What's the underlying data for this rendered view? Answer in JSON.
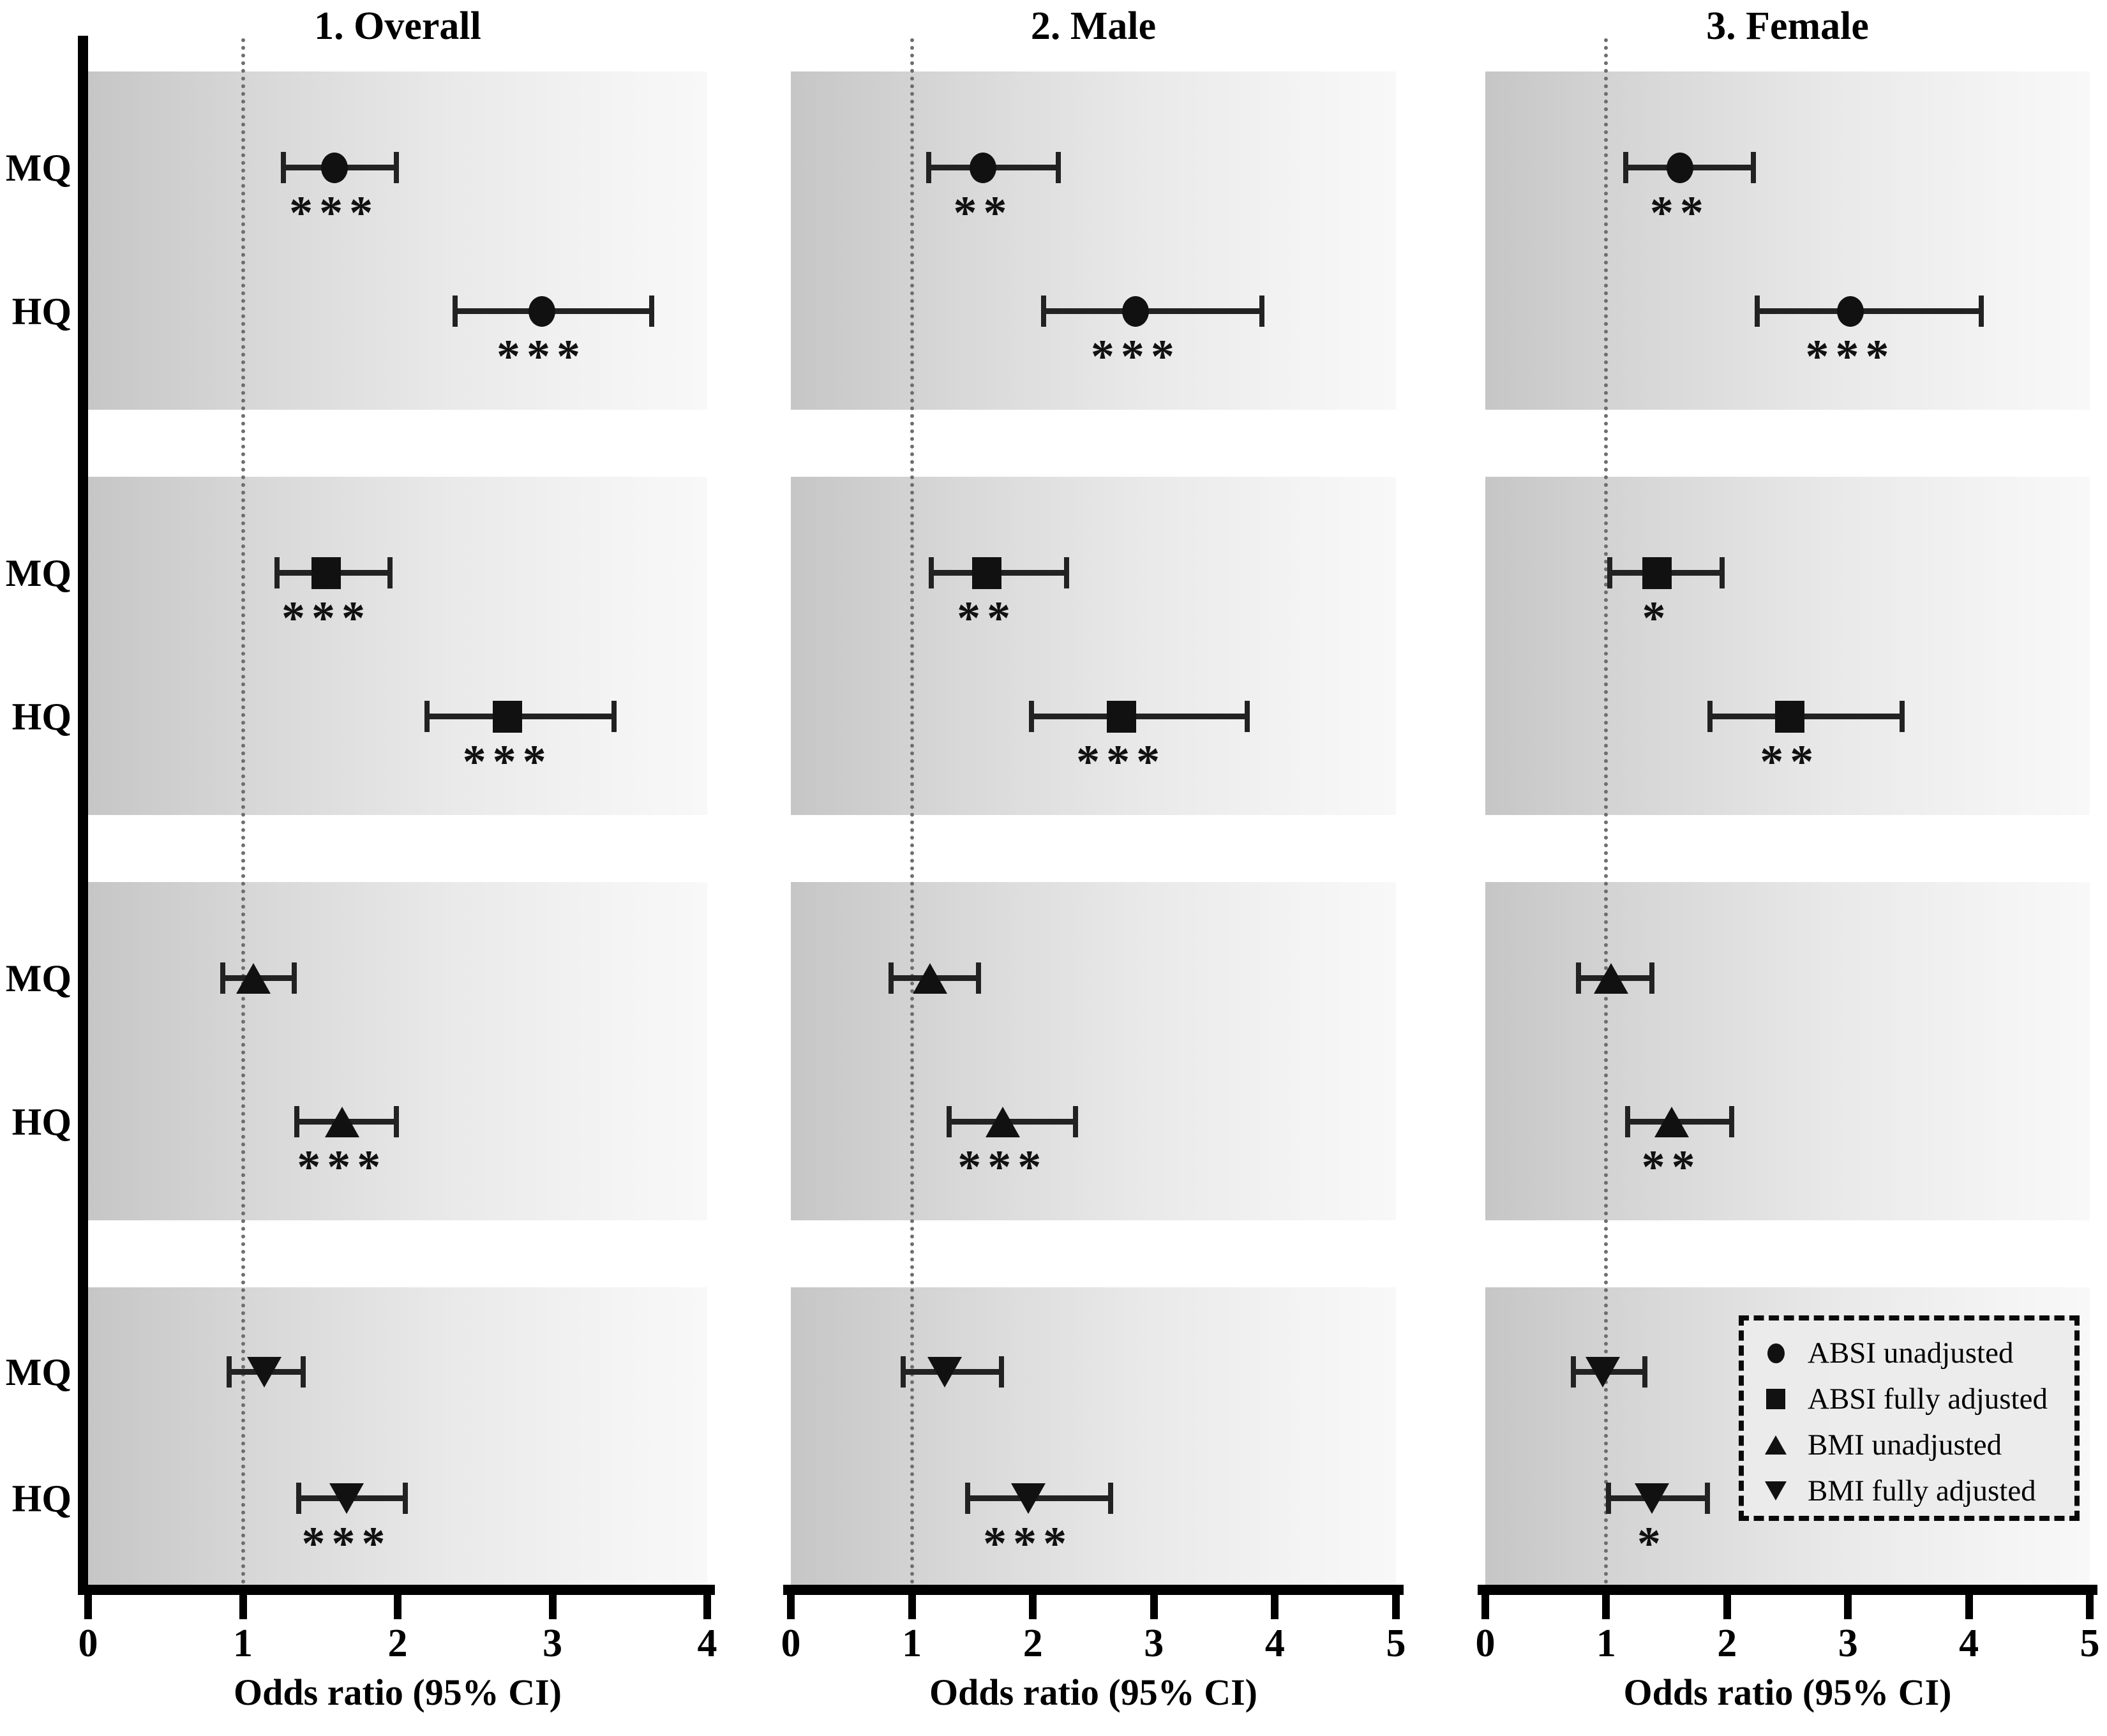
{
  "colors": {
    "marker": "#111111",
    "axis": "#000000",
    "band_left": "#c6c6c6",
    "band_right": "#f8f8f8",
    "reference_line": "#6e6e6e"
  },
  "chart_data": {
    "type": "forest",
    "xlabel": "Odds ratio (95% CI)",
    "row_labels": [
      "MQ",
      "HQ"
    ],
    "reference_line": 1,
    "grid": false,
    "legend_position": "bottom-right",
    "panels": [
      {
        "title": "1. Overall",
        "xlim": [
          0,
          4
        ],
        "xticks": [
          0,
          1,
          2,
          3,
          4
        ],
        "groups": [
          {
            "series": "ABSI unadjusted",
            "marker": "circle",
            "rows": [
              {
                "label": "MQ",
                "or": 1.59,
                "lo": 1.26,
                "hi": 1.99,
                "sig": "***"
              },
              {
                "label": "HQ",
                "or": 2.93,
                "lo": 2.37,
                "hi": 3.64,
                "sig": "***"
              }
            ]
          },
          {
            "series": "ABSI fully adjusted",
            "marker": "square",
            "rows": [
              {
                "label": "MQ",
                "or": 1.54,
                "lo": 1.22,
                "hi": 1.95,
                "sig": "***"
              },
              {
                "label": "HQ",
                "or": 2.71,
                "lo": 2.19,
                "hi": 3.4,
                "sig": "***"
              }
            ]
          },
          {
            "series": "BMI unadjusted",
            "marker": "tri-up",
            "rows": [
              {
                "label": "MQ",
                "or": 1.07,
                "lo": 0.87,
                "hi": 1.33,
                "sig": ""
              },
              {
                "label": "HQ",
                "or": 1.64,
                "lo": 1.35,
                "hi": 1.99,
                "sig": "***"
              }
            ]
          },
          {
            "series": "BMI fully adjusted",
            "marker": "tri-down",
            "rows": [
              {
                "label": "MQ",
                "or": 1.14,
                "lo": 0.91,
                "hi": 1.39,
                "sig": ""
              },
              {
                "label": "HQ",
                "or": 1.67,
                "lo": 1.36,
                "hi": 2.05,
                "sig": "***"
              }
            ]
          }
        ]
      },
      {
        "title": "2. Male",
        "xlim": [
          0,
          5
        ],
        "xticks": [
          0,
          1,
          2,
          3,
          4,
          5
        ],
        "groups": [
          {
            "series": "ABSI unadjusted",
            "marker": "circle",
            "rows": [
              {
                "label": "MQ",
                "or": 1.59,
                "lo": 1.14,
                "hi": 2.21,
                "sig": "**"
              },
              {
                "label": "HQ",
                "or": 2.85,
                "lo": 2.09,
                "hi": 3.89,
                "sig": "***"
              }
            ]
          },
          {
            "series": "ABSI fully adjusted",
            "marker": "square",
            "rows": [
              {
                "label": "MQ",
                "or": 1.62,
                "lo": 1.16,
                "hi": 2.28,
                "sig": "**"
              },
              {
                "label": "HQ",
                "or": 2.73,
                "lo": 1.99,
                "hi": 3.77,
                "sig": "***"
              }
            ]
          },
          {
            "series": "BMI unadjusted",
            "marker": "tri-up",
            "rows": [
              {
                "label": "MQ",
                "or": 1.15,
                "lo": 0.83,
                "hi": 1.55,
                "sig": ""
              },
              {
                "label": "HQ",
                "or": 1.75,
                "lo": 1.31,
                "hi": 2.35,
                "sig": "***"
              }
            ]
          },
          {
            "series": "BMI fully adjusted",
            "marker": "tri-down",
            "rows": [
              {
                "label": "MQ",
                "or": 1.27,
                "lo": 0.93,
                "hi": 1.74,
                "sig": ""
              },
              {
                "label": "HQ",
                "or": 1.96,
                "lo": 1.46,
                "hi": 2.64,
                "sig": "***"
              }
            ]
          }
        ]
      },
      {
        "title": "3. Female",
        "xlim": [
          0,
          5
        ],
        "xticks": [
          0,
          1,
          2,
          3,
          4,
          5
        ],
        "groups": [
          {
            "series": "ABSI unadjusted",
            "marker": "circle",
            "rows": [
              {
                "label": "MQ",
                "or": 1.61,
                "lo": 1.16,
                "hi": 2.22,
                "sig": "**"
              },
              {
                "label": "HQ",
                "or": 3.02,
                "lo": 2.25,
                "hi": 4.1,
                "sig": "***"
              }
            ]
          },
          {
            "series": "ABSI fully adjusted",
            "marker": "square",
            "rows": [
              {
                "label": "MQ",
                "or": 1.42,
                "lo": 1.03,
                "hi": 1.96,
                "sig": "*"
              },
              {
                "label": "HQ",
                "or": 2.52,
                "lo": 1.86,
                "hi": 3.45,
                "sig": "**"
              }
            ]
          },
          {
            "series": "BMI unadjusted",
            "marker": "tri-up",
            "rows": [
              {
                "label": "MQ",
                "or": 1.04,
                "lo": 0.77,
                "hi": 1.38,
                "sig": ""
              },
              {
                "label": "HQ",
                "or": 1.54,
                "lo": 1.18,
                "hi": 2.04,
                "sig": "**"
              }
            ]
          },
          {
            "series": "BMI fully adjusted",
            "marker": "tri-down",
            "rows": [
              {
                "label": "MQ",
                "or": 0.97,
                "lo": 0.73,
                "hi": 1.32,
                "sig": ""
              },
              {
                "label": "HQ",
                "or": 1.38,
                "lo": 1.02,
                "hi": 1.84,
                "sig": "*"
              }
            ]
          }
        ]
      }
    ],
    "legend": [
      {
        "marker": "circle",
        "label": "ABSI unadjusted"
      },
      {
        "marker": "square",
        "label": "ABSI fully adjusted"
      },
      {
        "marker": "tri-up",
        "label": "BMI unadjusted"
      },
      {
        "marker": "tri-down",
        "label": "BMI fully adjusted"
      }
    ]
  }
}
